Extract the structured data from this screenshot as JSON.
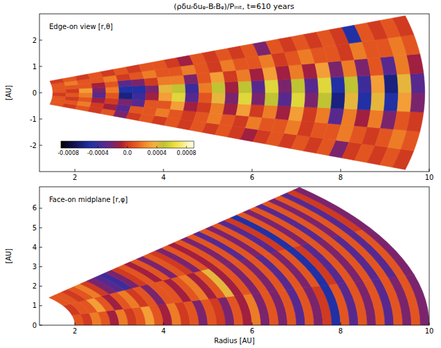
{
  "title": "(ρδuᵣδuᵩ-BᵣBᵩ)/Pᵢₙᵢₜ, t=610 years",
  "colorbar": {
    "range": [
      -0.0009,
      0.0009
    ],
    "ticks": [
      -0.0008,
      -0.0004,
      {
        "value": 0,
        "label": "0.0"
      },
      0.0004,
      0.0008
    ]
  },
  "chart_data": [
    {
      "type": "heatmap",
      "annotation": "Edge-on view [r,θ]",
      "ylabel": "[AU]",
      "xlim": [
        1.2,
        10
      ],
      "xticks": [
        2,
        4,
        6,
        8,
        10
      ],
      "ylim": [
        -3,
        3
      ],
      "yticks": [
        -2,
        -1,
        0,
        1,
        2
      ],
      "r_bins": [
        1.5,
        1.8,
        2.1,
        2.4,
        2.7,
        3.0,
        3.3,
        3.6,
        3.9,
        4.2,
        4.5,
        4.8,
        5.1,
        5.4,
        5.7,
        6.0,
        6.3,
        6.6,
        6.9,
        7.2,
        7.5,
        7.8,
        8.1,
        8.4,
        8.7,
        9.0,
        9.3,
        9.6,
        9.9
      ],
      "theta_bins": [
        -0.3,
        -0.225,
        -0.15,
        -0.075,
        0,
        0.075,
        0.15,
        0.225,
        0.3
      ],
      "cells": [
        [
          0.0001,
          0,
          0.0001,
          0,
          0.0001,
          -0.0002,
          0,
          0.0001,
          0,
          0.0001,
          0,
          0.0001,
          0,
          0.0001,
          0,
          -0.0001,
          0,
          0.0001,
          0,
          0.0001,
          0,
          0.0001,
          -0.0002,
          0,
          0.0001,
          0,
          0.0001,
          0
        ],
        [
          0.0001,
          0.0001,
          0.0002,
          0,
          -0.0001,
          -0.0003,
          0.0001,
          0.0001,
          0.0002,
          0.0001,
          0,
          0.0001,
          0.0002,
          0.0001,
          0,
          0.0002,
          0.0001,
          0.0001,
          0.0002,
          0,
          0.0001,
          0.0001,
          0.0002,
          0.0001,
          0,
          0.0001,
          0.0002,
          0.0001
        ],
        [
          0.0001,
          0,
          0.0001,
          -0.0001,
          0,
          -0.0002,
          -0.0003,
          0.0001,
          0.0001,
          0.0003,
          -0.0001,
          0,
          0.0002,
          -0.0001,
          0.0003,
          0,
          0.0002,
          -0.0001,
          0.0003,
          0,
          0.0002,
          -0.0003,
          0.0002,
          -0.0001,
          0.0002,
          -0.0002,
          0.0001,
          0
        ],
        [
          0,
          0.0001,
          0.0002,
          -0.0003,
          0.0001,
          -0.0006,
          -0.0004,
          -0.0001,
          0.0003,
          0.0006,
          -0.0003,
          0.0001,
          0.0004,
          -0.0002,
          0.0006,
          -0.0002,
          0.0005,
          -0.0003,
          0.0006,
          -0.0002,
          0.0005,
          -0.0006,
          0.0004,
          -0.0005,
          0.0004,
          -0.0005,
          0.0003,
          -0.0002
        ],
        [
          0.0001,
          0,
          0.0003,
          -0.0002,
          0.0002,
          -0.0005,
          -0.0005,
          -0.0002,
          0.0004,
          0.0005,
          -0.0004,
          0.0002,
          0.0005,
          -0.0001,
          0.0005,
          -0.0003,
          0.0006,
          -0.0002,
          0.0005,
          -0.0003,
          0.0006,
          -0.0005,
          0.0005,
          -0.0004,
          0.0003,
          -0.0006,
          0.0004,
          -0.0003
        ],
        [
          0.0001,
          0.0001,
          0.0001,
          -0.0001,
          0.0001,
          -0.0003,
          -0.0002,
          0,
          0.0002,
          0.0002,
          -0.0002,
          0.0001,
          0.0003,
          0,
          0.0002,
          -0.0001,
          0.0003,
          -0.0001,
          0.0002,
          -0.0001,
          0.0003,
          -0.0002,
          0.0002,
          -0.0002,
          0.0001,
          -0.0003,
          0.0002,
          -0.0001
        ],
        [
          0.0001,
          0.0002,
          0.0001,
          0.0001,
          0.0002,
          0,
          0.0001,
          0.0002,
          0.0001,
          0.0001,
          0.0002,
          0.0001,
          0,
          0.0002,
          0.0001,
          0.0001,
          0.0002,
          0,
          0.0001,
          0.0002,
          0.0001,
          0.0001,
          0,
          0.0002,
          0.0001,
          0.0001,
          0.0002,
          0.0001
        ],
        [
          0,
          0.0001,
          0,
          0.0001,
          0,
          0.0001,
          0,
          0.0001,
          0.0001,
          0,
          -0.0001,
          0.0001,
          0,
          0.0001,
          0,
          0.0001,
          -0.0002,
          0.0001,
          0,
          0.0001,
          0,
          0.0001,
          0,
          -0.0005,
          0.0001,
          0,
          0.0001,
          0
        ]
      ]
    },
    {
      "type": "heatmap",
      "annotation": "Face-on midplane [r,φ]",
      "ylabel": "[AU]",
      "xlabel": "Radius [AU]",
      "xlim": [
        1.2,
        10
      ],
      "xticks": [
        2,
        4,
        6,
        8,
        10
      ],
      "ylim": [
        0,
        7.1
      ],
      "yticks": [
        0,
        1,
        2,
        3,
        4,
        5,
        6
      ],
      "r_bins": [
        2.0,
        2.2,
        2.4,
        2.6,
        2.8,
        3.0,
        3.2,
        3.4,
        3.6,
        3.8,
        4.0,
        4.2,
        4.4,
        4.6,
        4.8,
        5.0,
        5.2,
        5.4,
        5.6,
        5.8,
        6.0,
        6.2,
        6.4,
        6.6,
        6.8,
        7.0,
        7.2,
        7.4,
        7.6,
        7.8,
        8.0,
        8.2,
        8.4,
        8.6,
        8.8,
        9.0,
        9.2,
        9.4,
        9.6,
        9.8,
        10.0
      ],
      "phi_bins": [
        0,
        0.2618,
        0.5236,
        0.7854
      ],
      "cells": [
        [
          0.0001,
          0,
          0.0002,
          0.0001,
          -0.0001,
          0.0002,
          0,
          0.0001,
          0.0003,
          0.0001,
          -0.0001,
          0.0002,
          0,
          0.0001,
          -0.0002,
          0.0001,
          0,
          -0.0002,
          0.0001,
          -0.0001,
          0.0002,
          -0.0002,
          0.0001,
          -0.0002,
          0.0001,
          -0.0003,
          0.0001,
          -0.0002,
          0,
          -0.0005,
          0.0001,
          -0.0003,
          0.0001,
          -0.0002,
          0.0001,
          -0.0003,
          0.0001,
          -0.0002,
          0.0001,
          -0.0002
        ],
        [
          0,
          0.0001,
          0.0001,
          0.0003,
          0.0001,
          -0.0001,
          0.0001,
          0.0002,
          0,
          0.0001,
          -0.0002,
          0.0001,
          0.0001,
          -0.0001,
          0.0001,
          0.0002,
          -0.0001,
          0.0001,
          0.0004,
          -0.0001,
          0.0001,
          -0.0002,
          0.0001,
          -0.0002,
          0.0001,
          -0.0003,
          0.0001,
          -0.0002,
          0.0001,
          -0.0005,
          0,
          -0.0003,
          0.0001,
          -0.0002,
          0.0001,
          -0.0003,
          0.0001,
          -0.0003,
          0.0001,
          -0.0002
        ],
        [
          0.0001,
          0.0001,
          0,
          0.0001,
          0.0002,
          0,
          -0.0002,
          -0.0003,
          -0.0004,
          -0.0002,
          0,
          0.0001,
          -0.0001,
          0.0001,
          -0.0002,
          0.0001,
          0,
          -0.0002,
          0.0001,
          -0.0001,
          0.0001,
          -0.0002,
          0.0001,
          -0.0003,
          0.0001,
          -0.0002,
          0.0001,
          -0.0003,
          0,
          -0.0005,
          0.0001,
          -0.0002,
          0.0001,
          -0.0003,
          0.0001,
          -0.0002,
          0.0001,
          -0.0003,
          0,
          -0.0002
        ]
      ]
    }
  ]
}
